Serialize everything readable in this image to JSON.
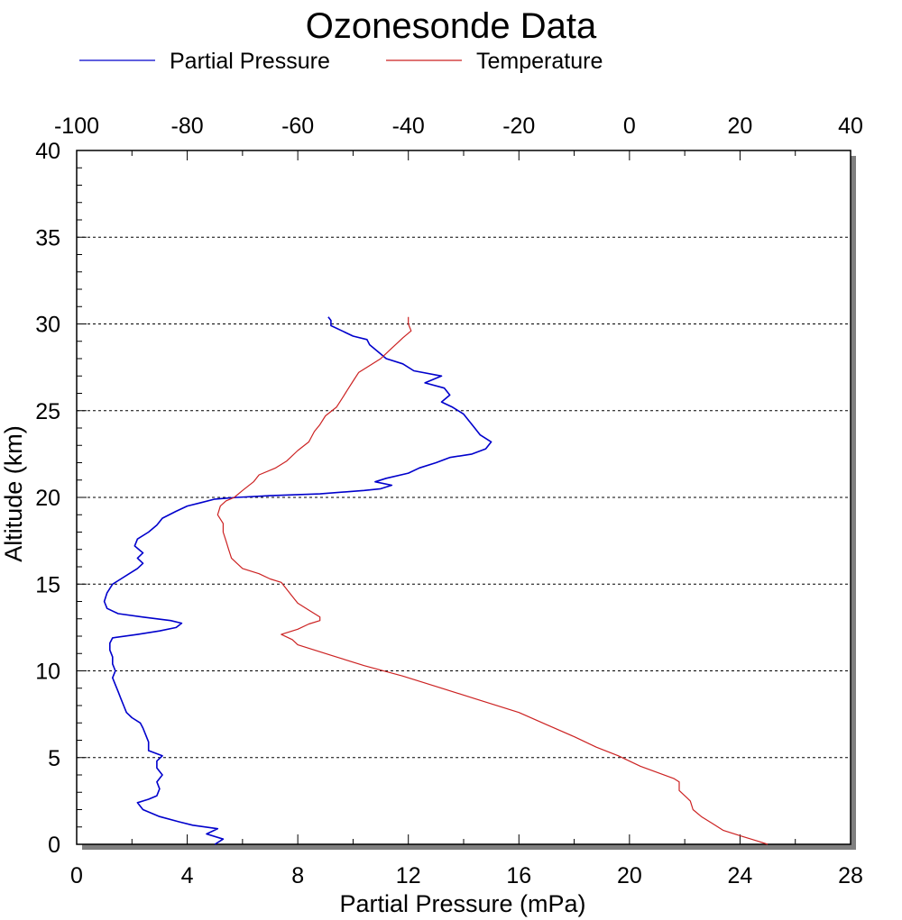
{
  "chart_data": {
    "type": "line",
    "title": "Ozonesonde Data",
    "legend": {
      "placement": "top-left",
      "entries": [
        {
          "label": "Partial Pressure",
          "color": "#0000cc"
        },
        {
          "label": "Temperature",
          "color": "#cc2222"
        }
      ]
    },
    "y_axis": {
      "label": "Altitude (km)",
      "range": [
        0,
        40
      ],
      "ticks": [
        "0",
        "5",
        "10",
        "15",
        "20",
        "25",
        "30",
        "35",
        "40"
      ],
      "gridlines": [
        5,
        10,
        15,
        20,
        25,
        30,
        35
      ]
    },
    "x_axis_bottom": {
      "label": "Partial Pressure (mPa)",
      "range": [
        0,
        28
      ],
      "ticks": [
        "0",
        "4",
        "8",
        "12",
        "16",
        "20",
        "24",
        "28"
      ]
    },
    "x_axis_top": {
      "label": "",
      "range": [
        -100,
        40
      ],
      "ticks": [
        "-100",
        "-80",
        "-60",
        "-40",
        "-20",
        "0",
        "20",
        "40"
      ]
    },
    "series": [
      {
        "name": "Partial Pressure",
        "axis": "bottom",
        "color": "#0000cc",
        "points": [
          [
            5.0,
            0.0
          ],
          [
            5.3,
            0.3
          ],
          [
            4.7,
            0.6
          ],
          [
            5.1,
            0.9
          ],
          [
            4.2,
            1.1
          ],
          [
            3.7,
            1.3
          ],
          [
            3.0,
            1.6
          ],
          [
            2.4,
            2.0
          ],
          [
            2.2,
            2.4
          ],
          [
            2.6,
            2.6
          ],
          [
            2.9,
            2.8
          ],
          [
            3.0,
            3.2
          ],
          [
            2.9,
            3.6
          ],
          [
            3.1,
            4.0
          ],
          [
            2.9,
            4.4
          ],
          [
            2.9,
            4.8
          ],
          [
            3.1,
            5.1
          ],
          [
            2.6,
            5.4
          ],
          [
            2.6,
            5.9
          ],
          [
            2.5,
            6.3
          ],
          [
            2.4,
            6.7
          ],
          [
            2.3,
            7.0
          ],
          [
            2.0,
            7.3
          ],
          [
            1.8,
            7.6
          ],
          [
            1.7,
            8.0
          ],
          [
            1.6,
            8.4
          ],
          [
            1.5,
            8.8
          ],
          [
            1.4,
            9.2
          ],
          [
            1.3,
            9.6
          ],
          [
            1.4,
            10.0
          ],
          [
            1.3,
            10.4
          ],
          [
            1.3,
            10.8
          ],
          [
            1.2,
            11.2
          ],
          [
            1.2,
            11.6
          ],
          [
            1.3,
            11.9
          ],
          [
            2.2,
            12.1
          ],
          [
            3.0,
            12.3
          ],
          [
            3.6,
            12.5
          ],
          [
            3.8,
            12.75
          ],
          [
            3.4,
            12.9
          ],
          [
            2.4,
            13.1
          ],
          [
            1.5,
            13.3
          ],
          [
            1.1,
            13.6
          ],
          [
            1.0,
            14.0
          ],
          [
            1.1,
            14.5
          ],
          [
            1.3,
            15.0
          ],
          [
            1.6,
            15.3
          ],
          [
            1.9,
            15.6
          ],
          [
            2.2,
            15.9
          ],
          [
            2.4,
            16.2
          ],
          [
            2.2,
            16.5
          ],
          [
            2.4,
            16.8
          ],
          [
            2.1,
            17.2
          ],
          [
            2.2,
            17.6
          ],
          [
            2.6,
            18.0
          ],
          [
            2.9,
            18.4
          ],
          [
            3.1,
            18.8
          ],
          [
            3.6,
            19.2
          ],
          [
            4.0,
            19.5
          ],
          [
            4.5,
            19.7
          ],
          [
            5.0,
            19.9
          ],
          [
            5.8,
            20.0
          ],
          [
            7.0,
            20.1
          ],
          [
            8.8,
            20.2
          ],
          [
            10.4,
            20.4
          ],
          [
            11.0,
            20.5
          ],
          [
            11.4,
            20.7
          ],
          [
            10.8,
            20.9
          ],
          [
            11.2,
            21.1
          ],
          [
            12.0,
            21.4
          ],
          [
            12.4,
            21.7
          ],
          [
            13.0,
            22.0
          ],
          [
            13.5,
            22.3
          ],
          [
            14.3,
            22.5
          ],
          [
            14.8,
            22.8
          ],
          [
            15.0,
            23.2
          ],
          [
            14.6,
            23.6
          ],
          [
            14.4,
            24.0
          ],
          [
            14.2,
            24.4
          ],
          [
            14.0,
            24.8
          ],
          [
            13.6,
            25.2
          ],
          [
            13.2,
            25.5
          ],
          [
            13.5,
            25.9
          ],
          [
            13.3,
            26.3
          ],
          [
            12.6,
            26.6
          ],
          [
            13.2,
            27.0
          ],
          [
            12.2,
            27.3
          ],
          [
            11.8,
            27.7
          ],
          [
            11.2,
            28.0
          ],
          [
            10.9,
            28.4
          ],
          [
            10.6,
            28.8
          ],
          [
            10.5,
            29.1
          ],
          [
            10.0,
            29.3
          ],
          [
            9.6,
            29.6
          ],
          [
            9.2,
            29.9
          ],
          [
            9.2,
            30.2
          ],
          [
            9.1,
            30.4
          ]
        ]
      },
      {
        "name": "Temperature",
        "axis": "top",
        "color": "#cc2222",
        "points": [
          [
            25.0,
            0.0
          ],
          [
            23.0,
            0.2
          ],
          [
            20.0,
            0.5
          ],
          [
            17.0,
            0.8
          ],
          [
            15.0,
            1.2
          ],
          [
            13.0,
            1.6
          ],
          [
            11.5,
            2.0
          ],
          [
            11.0,
            2.5
          ],
          [
            9.0,
            3.1
          ],
          [
            9.0,
            3.6
          ],
          [
            8.0,
            3.8
          ],
          [
            2.0,
            4.5
          ],
          [
            -2.0,
            5.1
          ],
          [
            -6.0,
            5.6
          ],
          [
            -10.0,
            6.2
          ],
          [
            -15.0,
            6.9
          ],
          [
            -20.0,
            7.6
          ],
          [
            -28.0,
            8.4
          ],
          [
            -35.0,
            9.1
          ],
          [
            -41.0,
            9.7
          ],
          [
            -48.0,
            10.3
          ],
          [
            -54.0,
            10.9
          ],
          [
            -60.0,
            11.5
          ],
          [
            -61.0,
            11.8
          ],
          [
            -63.0,
            12.1
          ],
          [
            -60.0,
            12.4
          ],
          [
            -58.0,
            12.7
          ],
          [
            -56.0,
            12.9
          ],
          [
            -56.0,
            13.1
          ],
          [
            -58.0,
            13.5
          ],
          [
            -60.0,
            13.9
          ],
          [
            -61.0,
            14.3
          ],
          [
            -62.0,
            14.7
          ],
          [
            -63.0,
            15.1
          ],
          [
            -65.0,
            15.3
          ],
          [
            -67.0,
            15.6
          ],
          [
            -70.0,
            15.9
          ],
          [
            -71.0,
            16.2
          ],
          [
            -72.0,
            16.5
          ],
          [
            -72.5,
            17.0
          ],
          [
            -73.0,
            17.5
          ],
          [
            -73.5,
            18.0
          ],
          [
            -73.5,
            18.5
          ],
          [
            -74.5,
            19.0
          ],
          [
            -74.0,
            19.5
          ],
          [
            -73.0,
            19.8
          ],
          [
            -71.5,
            20.0
          ],
          [
            -70.0,
            20.4
          ],
          [
            -68.0,
            20.9
          ],
          [
            -67.0,
            21.3
          ],
          [
            -64.0,
            21.7
          ],
          [
            -62.0,
            22.1
          ],
          [
            -60.0,
            22.7
          ],
          [
            -58.0,
            23.2
          ],
          [
            -57.0,
            23.8
          ],
          [
            -56.0,
            24.2
          ],
          [
            -55.0,
            24.7
          ],
          [
            -53.0,
            25.2
          ],
          [
            -52.0,
            25.7
          ],
          [
            -51.0,
            26.2
          ],
          [
            -50.0,
            26.7
          ],
          [
            -49.0,
            27.2
          ],
          [
            -47.0,
            27.6
          ],
          [
            -45.0,
            28.0
          ],
          [
            -44.0,
            28.3
          ],
          [
            -43.0,
            28.6
          ],
          [
            -42.0,
            28.9
          ],
          [
            -41.0,
            29.2
          ],
          [
            -39.5,
            29.6
          ],
          [
            -40.0,
            30.0
          ],
          [
            -40.0,
            30.4
          ]
        ]
      }
    ]
  }
}
